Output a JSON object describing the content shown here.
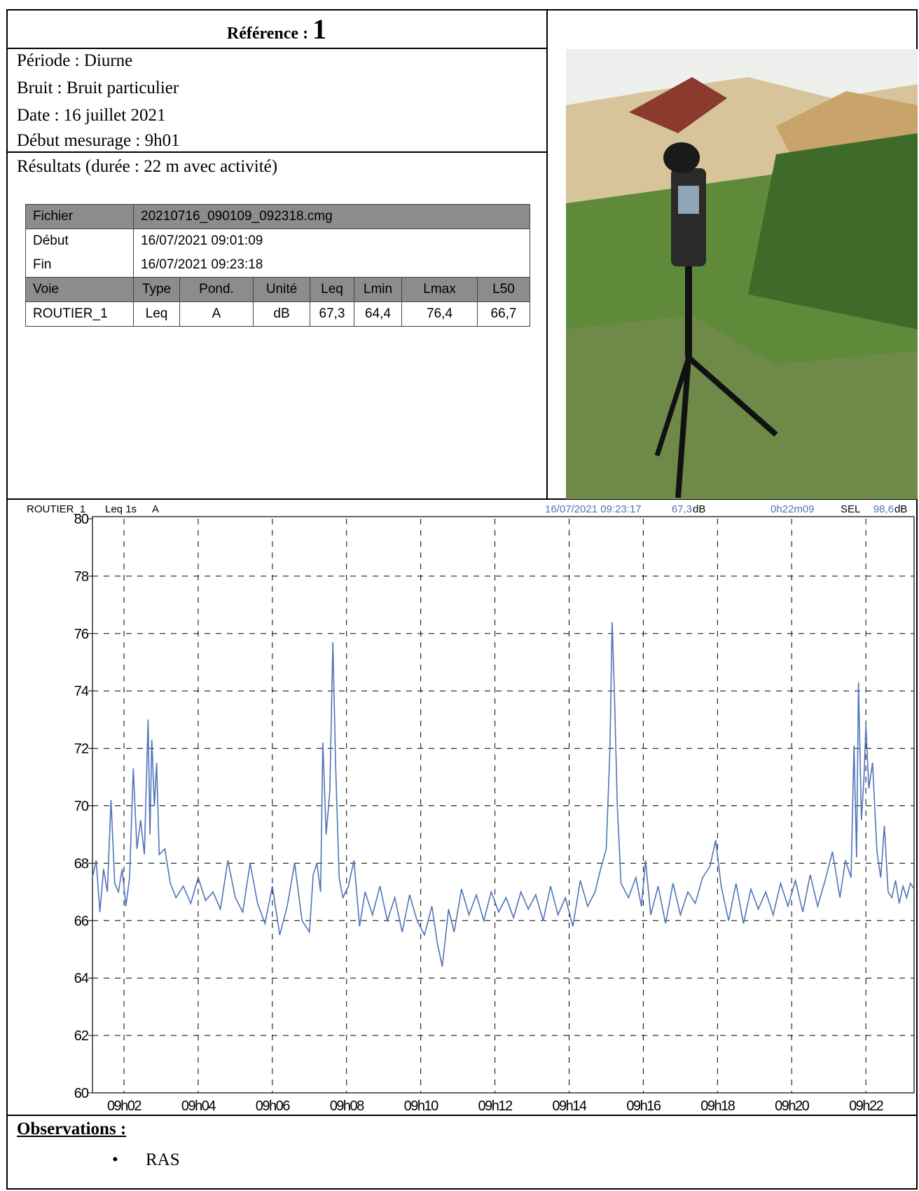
{
  "reference": {
    "label": "Référence :",
    "number": "1"
  },
  "info": [
    "Période : Diurne",
    "Bruit : Bruit particulier",
    "Date : 16 juillet 2021",
    "Début mesurage : 9h01"
  ],
  "results_title": "Résultats (durée : 22 m avec activité)",
  "table": {
    "file": {
      "label": "Fichier",
      "value": "20210716_090109_092318.cmg"
    },
    "start": {
      "label": "Début",
      "value": "16/07/2021 09:01:09"
    },
    "end": {
      "label": "Fin",
      "value": "16/07/2021 09:23:18"
    },
    "columns": [
      "Voie",
      "Type",
      "Pond.",
      "Unité",
      "Leq",
      "Lmin",
      "Lmax",
      "L50"
    ],
    "rows": [
      [
        "ROUTIER_1",
        "Leq",
        "A",
        "dB",
        "67,3",
        "64,4",
        "76,4",
        "66,7"
      ]
    ]
  },
  "chart_header": {
    "channel": "ROUTIER_1",
    "measure": "Leq 1s",
    "weighting": "A",
    "cursor_time": "16/07/2021 09:23:17",
    "cursor_value": "67,3",
    "unit": "dB",
    "duration": "0h22m09",
    "sel_label": "SEL",
    "sel_value": "98,6"
  },
  "chart_data": {
    "type": "line",
    "x": [
      1.15,
      1.25,
      1.35,
      1.45,
      1.55,
      1.65,
      1.75,
      1.85,
      1.95,
      2.05,
      2.15,
      2.25,
      2.35,
      2.45,
      2.55,
      2.65,
      2.7,
      2.75,
      2.82,
      2.88,
      2.95,
      3.1,
      3.25,
      3.4,
      3.6,
      3.8,
      4.0,
      4.2,
      4.4,
      4.6,
      4.8,
      5.0,
      5.2,
      5.4,
      5.6,
      5.8,
      6.0,
      6.2,
      6.4,
      6.6,
      6.8,
      7.0,
      7.1,
      7.2,
      7.3,
      7.36,
      7.45,
      7.55,
      7.63,
      7.71,
      7.8,
      7.9,
      8.05,
      8.2,
      8.35,
      8.5,
      8.7,
      8.9,
      9.1,
      9.3,
      9.5,
      9.7,
      9.9,
      10.1,
      10.3,
      10.45,
      10.58,
      10.75,
      10.9,
      11.1,
      11.3,
      11.5,
      11.7,
      11.9,
      12.1,
      12.3,
      12.5,
      12.7,
      12.9,
      13.1,
      13.3,
      13.5,
      13.7,
      13.9,
      14.1,
      14.3,
      14.5,
      14.7,
      14.85,
      15.0,
      15.1,
      15.16,
      15.22,
      15.3,
      15.4,
      15.6,
      15.8,
      15.95,
      16.06,
      16.2,
      16.4,
      16.6,
      16.8,
      17.0,
      17.2,
      17.4,
      17.6,
      17.8,
      17.95,
      18.1,
      18.3,
      18.5,
      18.7,
      18.9,
      19.1,
      19.3,
      19.5,
      19.7,
      19.9,
      20.1,
      20.3,
      20.5,
      20.7,
      20.9,
      21.1,
      21.3,
      21.45,
      21.6,
      21.68,
      21.75,
      21.8,
      21.88,
      21.95,
      22.0,
      22.08,
      22.18,
      22.3,
      22.4,
      22.5,
      22.6,
      22.7,
      22.8,
      22.9,
      23.0,
      23.1,
      23.2,
      23.3
    ],
    "series": [
      {
        "color": "#4f74b8",
        "values": [
          67.5,
          68.1,
          66.3,
          67.8,
          67.0,
          70.2,
          67.3,
          67.0,
          67.8,
          66.5,
          67.5,
          71.3,
          68.5,
          69.5,
          68.3,
          73.0,
          69.0,
          72.3,
          70.0,
          71.5,
          68.3,
          68.5,
          67.3,
          66.8,
          67.2,
          66.6,
          67.5,
          66.7,
          67.0,
          66.4,
          68.1,
          66.8,
          66.3,
          68.0,
          66.6,
          65.9,
          67.2,
          65.5,
          66.5,
          68.0,
          66.0,
          65.6,
          67.6,
          68.0,
          67.0,
          72.2,
          69.0,
          70.5,
          75.7,
          71.2,
          67.5,
          66.8,
          67.2,
          68.1,
          65.8,
          67.0,
          66.2,
          67.2,
          66.0,
          66.8,
          65.6,
          66.9,
          66.0,
          65.5,
          66.5,
          65.2,
          64.4,
          66.4,
          65.6,
          67.1,
          66.2,
          66.9,
          66.0,
          67.0,
          66.3,
          66.8,
          66.1,
          67.0,
          66.4,
          66.9,
          66.0,
          67.2,
          66.2,
          66.8,
          65.8,
          67.4,
          66.5,
          67.0,
          67.8,
          68.5,
          72.0,
          76.4,
          74.0,
          70.0,
          67.3,
          66.8,
          67.5,
          66.5,
          68.1,
          66.2,
          67.2,
          65.9,
          67.3,
          66.2,
          67.0,
          66.6,
          67.5,
          67.9,
          68.8,
          67.2,
          66.0,
          67.3,
          65.9,
          67.1,
          66.4,
          67.0,
          66.2,
          67.3,
          66.5,
          67.4,
          66.3,
          67.6,
          66.5,
          67.4,
          68.4,
          66.8,
          68.1,
          67.5,
          72.1,
          68.2,
          74.3,
          69.5,
          71.0,
          72.8,
          70.6,
          71.5,
          68.4,
          67.5,
          69.3,
          67.0,
          66.8,
          67.4,
          66.6,
          67.2,
          66.8,
          67.3,
          67.1
        ]
      }
    ],
    "xlim": [
      1.15,
      23.3
    ],
    "xticks": [
      {
        "value": 2,
        "label": "09h02"
      },
      {
        "value": 4,
        "label": "09h04"
      },
      {
        "value": 6,
        "label": "09h06"
      },
      {
        "value": 8,
        "label": "09h08"
      },
      {
        "value": 10,
        "label": "09h10"
      },
      {
        "value": 12,
        "label": "09h12"
      },
      {
        "value": 14,
        "label": "09h14"
      },
      {
        "value": 16,
        "label": "09h16"
      },
      {
        "value": 18,
        "label": "09h18"
      },
      {
        "value": 20,
        "label": "09h20"
      },
      {
        "value": 22,
        "label": "09h22"
      }
    ],
    "ylim": [
      60,
      80
    ],
    "yticks": [
      60,
      62,
      64,
      66,
      68,
      70,
      72,
      74,
      76,
      78,
      80
    ],
    "grid": true
  },
  "observations": {
    "title": "Observations :",
    "items": [
      "RAS"
    ]
  }
}
